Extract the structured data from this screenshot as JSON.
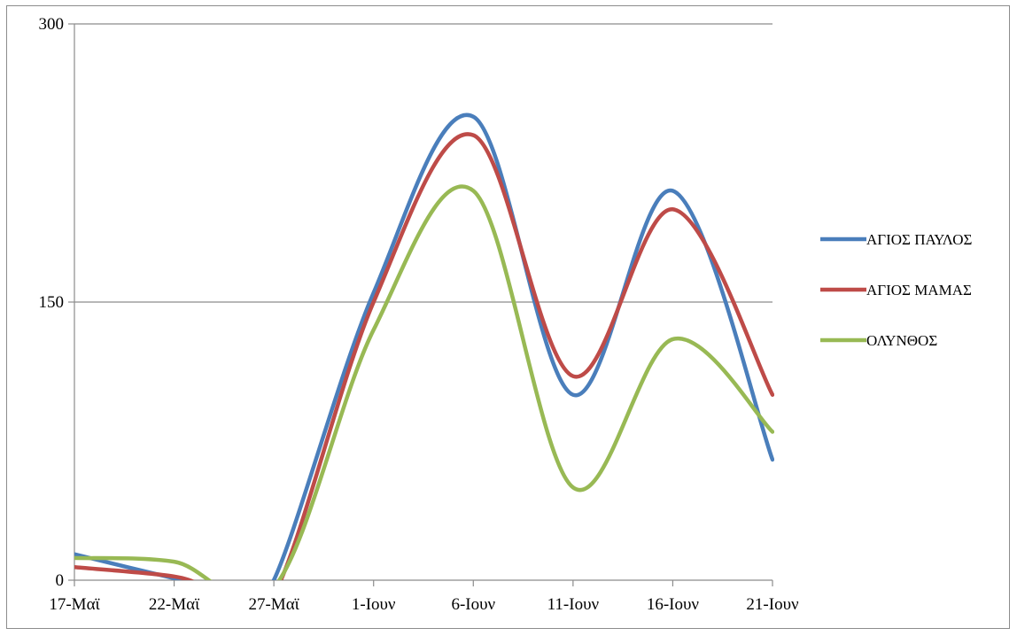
{
  "chart_data": {
    "type": "line",
    "smooth": true,
    "x": [
      "17-Μαϊ",
      "22-Μαϊ",
      "27-Μαϊ",
      "1-Ιουν",
      "6-Ιουν",
      "11-Ιουν",
      "16-Ιουν",
      "21-Ιουν"
    ],
    "x_dates": [
      "05-17",
      "05-22",
      "05-27",
      "06-01",
      "06-06",
      "06-11",
      "06-16",
      "06-21"
    ],
    "ylim": [
      0,
      300
    ],
    "yticks": [
      0,
      150,
      300
    ],
    "grid": true,
    "legend": "right",
    "series": [
      {
        "name": "ΑΓΙΟΣ ΠΑΥΛΟΣ",
        "color": "#4a7ebb",
        "points": [
          [
            "05-17",
            14
          ],
          [
            "05-22",
            1
          ],
          [
            "05-25",
            -6
          ],
          [
            "05-27",
            0
          ],
          [
            "06-01",
            155
          ],
          [
            "06-06",
            250
          ],
          [
            "06-11",
            100
          ],
          [
            "06-16",
            210
          ],
          [
            "06-21",
            65
          ]
        ]
      },
      {
        "name": "ΑΓΙΟΣ ΜΑΜΑΣ",
        "color": "#be4b48",
        "points": [
          [
            "05-17",
            7
          ],
          [
            "05-22",
            2
          ],
          [
            "05-24",
            -5
          ],
          [
            "05-27",
            -8
          ],
          [
            "06-01",
            150
          ],
          [
            "06-06",
            240
          ],
          [
            "06-11",
            110
          ],
          [
            "06-16",
            200
          ],
          [
            "06-21",
            100
          ]
        ]
      },
      {
        "name": "ΟΛΥΝΘΟΣ",
        "color": "#98b954",
        "points": [
          [
            "05-17",
            12
          ],
          [
            "05-22",
            10
          ],
          [
            "05-27",
            -4
          ],
          [
            "06-01",
            135
          ],
          [
            "06-06",
            210
          ],
          [
            "06-11",
            50
          ],
          [
            "06-16",
            130
          ],
          [
            "06-21",
            80
          ]
        ]
      }
    ]
  }
}
